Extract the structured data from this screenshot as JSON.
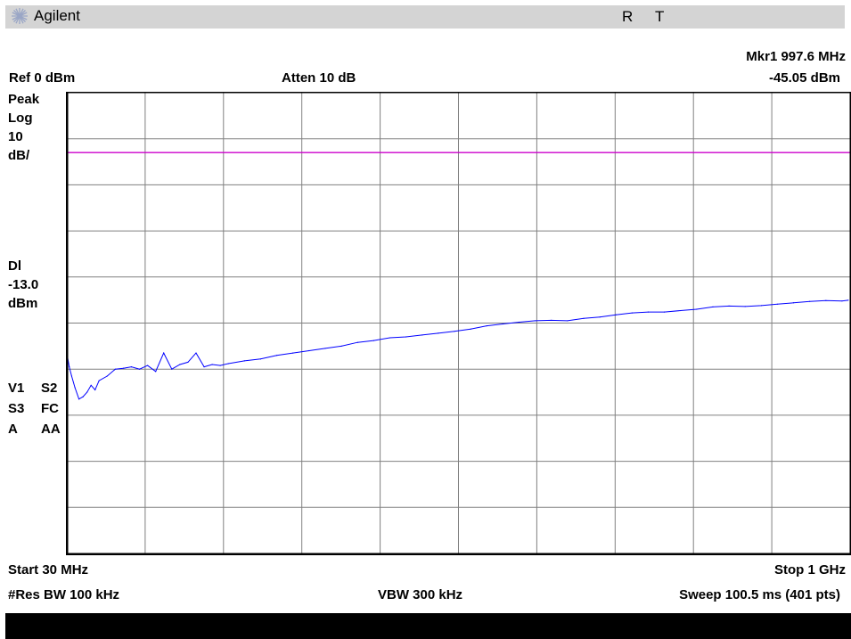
{
  "app": {
    "brand": "Agilent",
    "status_r": "R",
    "status_t": "T"
  },
  "header": {
    "marker_label": "Mkr1  997.6 MHz",
    "marker_value": "-45.05 dBm",
    "ref_level": "Ref 0 dBm",
    "attenuation": "Atten 10 dB"
  },
  "side_panel": {
    "detector": "Peak",
    "scale_type": "Log",
    "scale_value": "10",
    "scale_unit": "dB/",
    "display_line_label": "Dl",
    "display_line_value": "-13.0",
    "display_line_unit": "dBm",
    "ann_v1": "V1",
    "ann_s2": "S2",
    "ann_s3": "S3",
    "ann_fc": "FC",
    "ann_a": "A",
    "ann_aa": "AA"
  },
  "footer": {
    "start": "Start 30 MHz",
    "stop": "Stop 1 GHz",
    "res_bw": "#Res BW 100 kHz",
    "vbw": "VBW 300 kHz",
    "sweep": "Sweep 100.5 ms (401 pts)"
  },
  "colors": {
    "trace": "#0000ff",
    "display_line": "#cc00cc",
    "grid": "#808080",
    "frame": "#000000"
  },
  "chart_data": {
    "type": "line",
    "xlim": [
      30,
      1000
    ],
    "ylim": [
      -100,
      0
    ],
    "x_unit": "MHz",
    "y_unit": "dBm",
    "grid": true,
    "display_line_dbm": -13.0,
    "marker": {
      "x": 997.6,
      "y": -45.05
    },
    "x": [
      30,
      33,
      36,
      40,
      45,
      50,
      55,
      60,
      65,
      70,
      80,
      90,
      100,
      110,
      120,
      130,
      140,
      150,
      160,
      170,
      180,
      190,
      200,
      210,
      220,
      230,
      250,
      270,
      290,
      310,
      330,
      350,
      370,
      390,
      410,
      430,
      450,
      470,
      490,
      510,
      530,
      550,
      570,
      590,
      610,
      630,
      650,
      670,
      690,
      710,
      730,
      750,
      770,
      790,
      810,
      830,
      850,
      870,
      890,
      910,
      930,
      950,
      970,
      990,
      997.6
    ],
    "y": [
      -56.5,
      -59.5,
      -61.5,
      -64.0,
      -66.5,
      -66.0,
      -65.0,
      -63.5,
      -64.5,
      -62.5,
      -61.5,
      -60.0,
      -59.8,
      -59.5,
      -60.0,
      -59.2,
      -60.5,
      -56.5,
      -60.0,
      -59.0,
      -58.5,
      -56.5,
      -59.5,
      -59.0,
      -59.2,
      -58.8,
      -58.2,
      -57.8,
      -57.0,
      -56.5,
      -56.0,
      -55.5,
      -55.0,
      -54.2,
      -53.8,
      -53.2,
      -53.0,
      -52.6,
      -52.2,
      -51.8,
      -51.3,
      -50.6,
      -50.2,
      -49.8,
      -49.5,
      -49.4,
      -49.5,
      -49.0,
      -48.7,
      -48.2,
      -47.8,
      -47.6,
      -47.6,
      -47.3,
      -47.0,
      -46.5,
      -46.3,
      -46.4,
      -46.2,
      -45.9,
      -45.6,
      -45.3,
      -45.1,
      -45.2,
      -45.05
    ]
  }
}
